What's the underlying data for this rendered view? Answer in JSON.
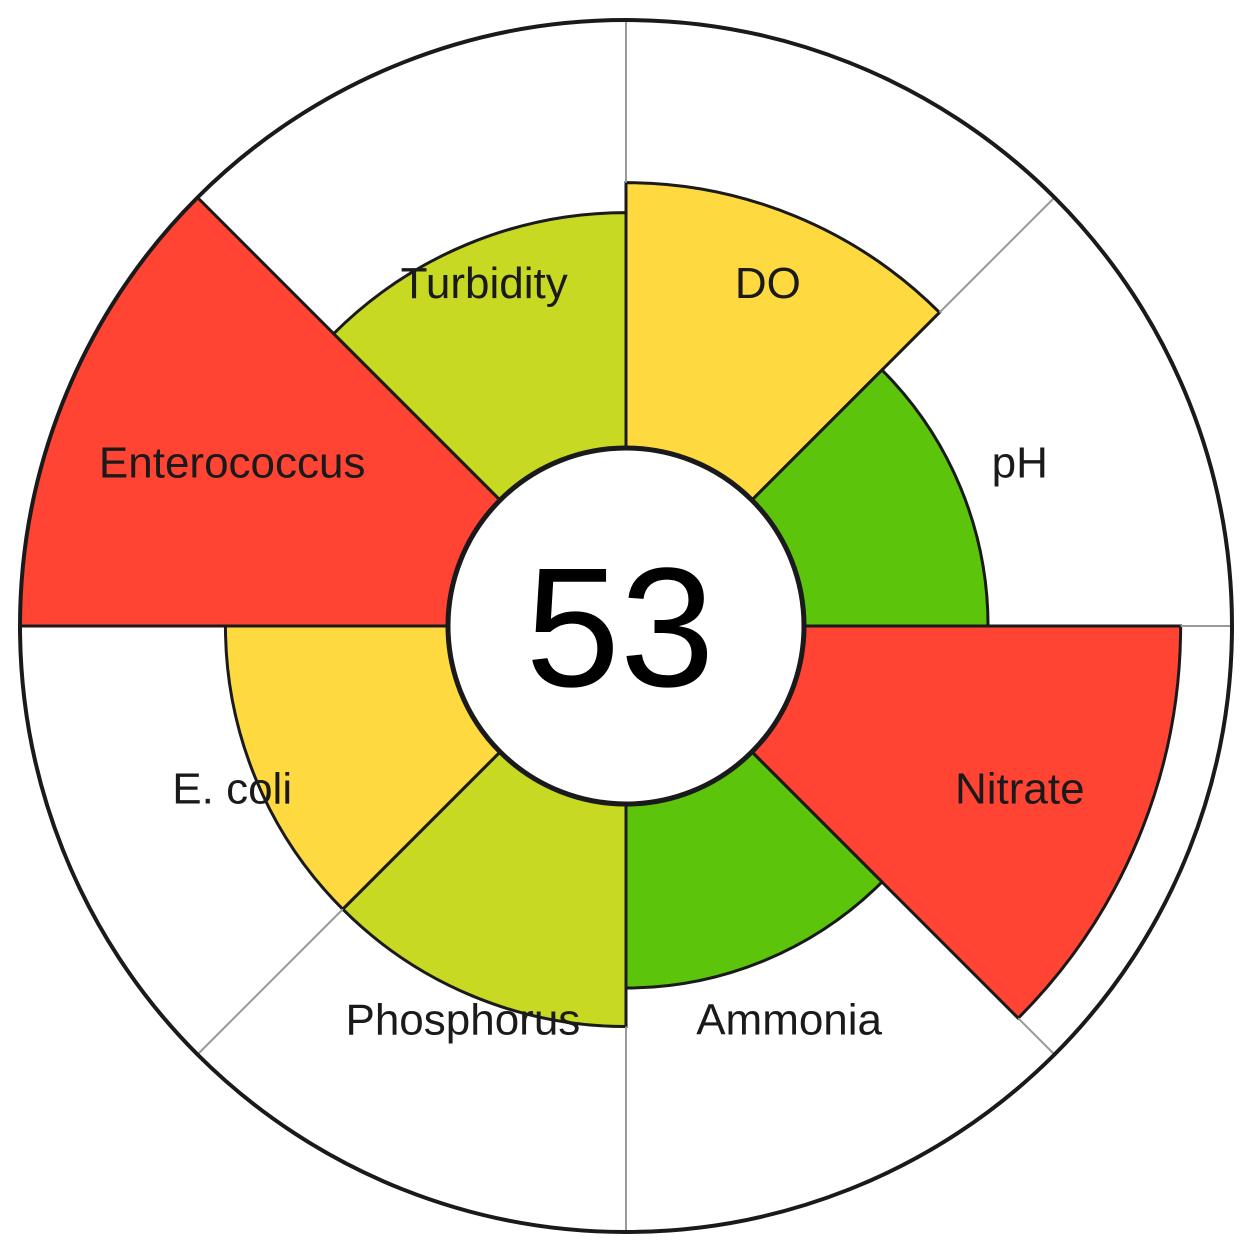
{
  "chart_data": {
    "type": "polar-area",
    "score": "53",
    "r_max": 100,
    "categories": [
      "DO",
      "pH",
      "Nitrate",
      "Ammonia",
      "Phosphorus",
      "E. coli",
      "Enterococcus",
      "Turbidity"
    ],
    "values": [
      62,
      43,
      88,
      43,
      52,
      52,
      100,
      55
    ],
    "colors": [
      "#ffd940",
      "#5cc40a",
      "#ff4433",
      "#5cc40a",
      "#c7d923",
      "#ffd940",
      "#ff4433",
      "#c7d923"
    ],
    "label_radii": [
      0.45,
      0.58,
      0.58,
      0.58,
      0.58,
      0.58,
      0.58,
      0.45
    ]
  }
}
